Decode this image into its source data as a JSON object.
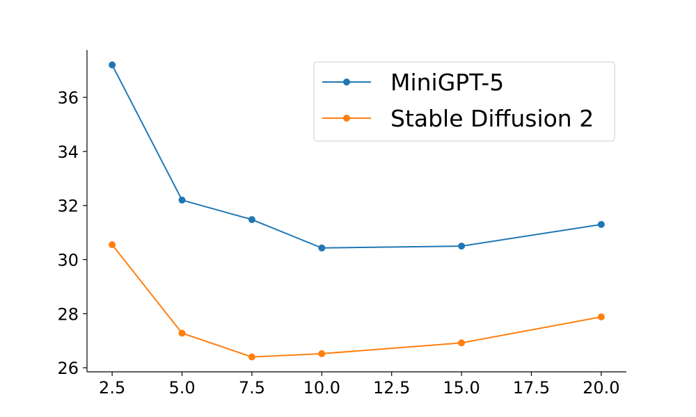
{
  "chart_data": {
    "type": "line",
    "x": [
      2.5,
      5.0,
      7.5,
      10.0,
      15.0,
      20.0
    ],
    "series": [
      {
        "name": "MiniGPT-5",
        "color": "#1f77b4",
        "values": [
          37.2,
          32.2,
          31.48,
          30.43,
          30.5,
          31.3
        ]
      },
      {
        "name": "Stable Diffusion 2",
        "color": "#ff7f0e",
        "values": [
          30.55,
          27.28,
          26.4,
          26.52,
          26.92,
          27.88
        ]
      }
    ],
    "xlim": [
      1.6,
      20.9
    ],
    "ylim": [
      25.85,
      37.75
    ],
    "x_ticks": [
      2.5,
      5.0,
      7.5,
      10.0,
      12.5,
      15.0,
      17.5,
      20.0
    ],
    "x_tick_labels": [
      "2.5",
      "5.0",
      "7.5",
      "10.0",
      "12.5",
      "15.0",
      "17.5",
      "20.0"
    ],
    "y_ticks": [
      26,
      28,
      30,
      32,
      34,
      36
    ],
    "y_tick_labels": [
      "26",
      "28",
      "30",
      "32",
      "34",
      "36"
    ],
    "grid": false,
    "legend_position": "top-right",
    "title": "",
    "xlabel": "",
    "ylabel": ""
  }
}
